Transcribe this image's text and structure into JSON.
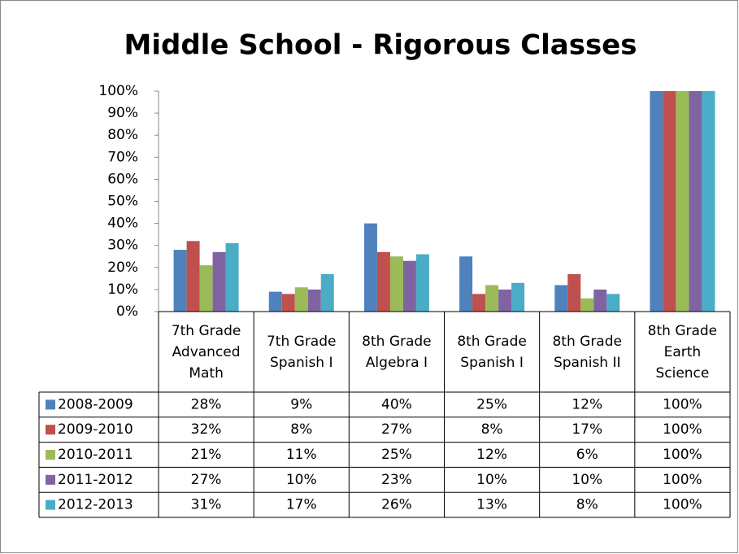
{
  "chart_data": {
    "type": "bar",
    "title": "Middle School - Rigorous Classes",
    "categories": [
      "7th Grade Advanced Math",
      "7th Grade Spanish I",
      "8th Grade Algebra I",
      "8th Grade Spanish I",
      "8th Grade Spanish II",
      "8th Grade Earth Science"
    ],
    "series": [
      {
        "name": "2008-2009",
        "color": "#4f81bd",
        "values": [
          28,
          9,
          40,
          25,
          12,
          100
        ],
        "value_labels": [
          "28%",
          "9%",
          "40%",
          "25%",
          "12%",
          "100%"
        ]
      },
      {
        "name": "2009-2010",
        "color": "#c0504d",
        "values": [
          32,
          8,
          27,
          8,
          17,
          100
        ],
        "value_labels": [
          "32%",
          "8%",
          "27%",
          "8%",
          "17%",
          "100%"
        ]
      },
      {
        "name": "2010-2011",
        "color": "#9bbb59",
        "values": [
          21,
          11,
          25,
          12,
          6,
          100
        ],
        "value_labels": [
          "21%",
          "11%",
          "25%",
          "12%",
          "6%",
          "100%"
        ]
      },
      {
        "name": "2011-2012",
        "color": "#8064a2",
        "values": [
          27,
          10,
          23,
          10,
          10,
          100
        ],
        "value_labels": [
          "27%",
          "10%",
          "23%",
          "10%",
          "10%",
          "100%"
        ]
      },
      {
        "name": "2012-2013",
        "color": "#4bacc6",
        "values": [
          31,
          17,
          26,
          13,
          8,
          100
        ],
        "value_labels": [
          "31%",
          "17%",
          "26%",
          "13%",
          "8%",
          "100%"
        ]
      }
    ],
    "ylim": [
      0,
      100
    ],
    "yticks": [
      {
        "value": 0,
        "label": "0%"
      },
      {
        "value": 10,
        "label": "10%"
      },
      {
        "value": 20,
        "label": "20%"
      },
      {
        "value": 30,
        "label": "30%"
      },
      {
        "value": 40,
        "label": "40%"
      },
      {
        "value": 50,
        "label": "50%"
      },
      {
        "value": 60,
        "label": "60%"
      },
      {
        "value": 70,
        "label": "70%"
      },
      {
        "value": 80,
        "label": "80%"
      },
      {
        "value": 90,
        "label": "90%"
      },
      {
        "value": 100,
        "label": "100%"
      }
    ],
    "grid": false,
    "data_table": true
  }
}
